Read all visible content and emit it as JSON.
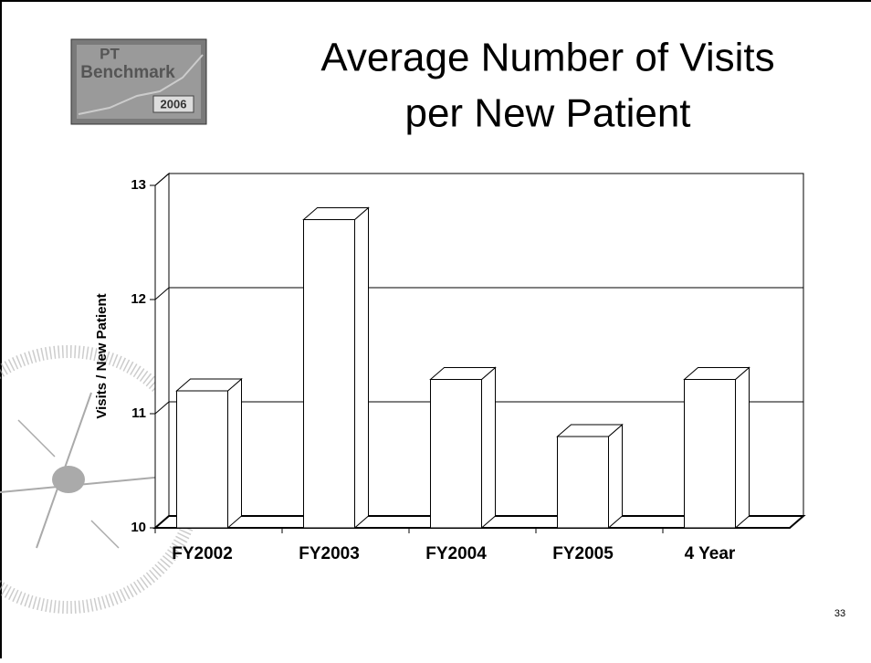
{
  "logo": {
    "line1": "PT",
    "line2": "Benchmark",
    "year": "2006"
  },
  "chart_data": {
    "type": "bar3d",
    "title": "Average Number of Visits per New Patient",
    "y_label": "Visits / New Patient",
    "categories": [
      "FY2002",
      "FY2003",
      "FY2004",
      "FY2005",
      "4 Year"
    ],
    "values": [
      11.2,
      12.7,
      11.3,
      10.8,
      11.3
    ],
    "color": "#ffffff",
    "ylim": [
      10,
      13
    ],
    "yticks": [
      10,
      11,
      12,
      13
    ],
    "grid": true
  },
  "page_number": "33"
}
